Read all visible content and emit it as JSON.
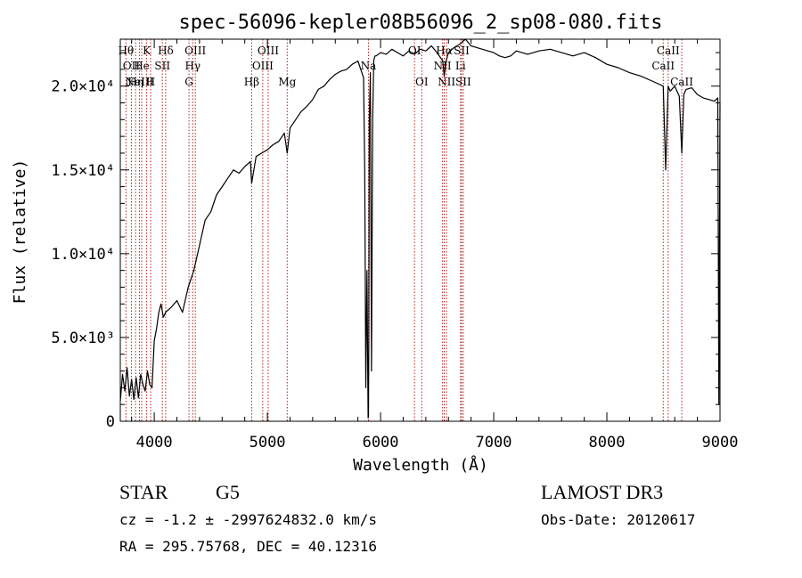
{
  "chart_data": {
    "type": "line",
    "title": "spec-56096-kepler08B56096_2_sp08-080.fits",
    "xlabel": "Wavelength (Å)",
    "ylabel": "Flux (relative)",
    "xlim": [
      3700,
      9000
    ],
    "ylim": [
      0,
      22800
    ],
    "x_ticks": [
      {
        "value": 4000,
        "label": "4000"
      },
      {
        "value": 5000,
        "label": "5000"
      },
      {
        "value": 6000,
        "label": "6000"
      },
      {
        "value": 7000,
        "label": "7000"
      },
      {
        "value": 8000,
        "label": "8000"
      },
      {
        "value": 9000,
        "label": "9000"
      }
    ],
    "y_ticks": [
      {
        "value": 0,
        "label": "0"
      },
      {
        "value": 5000,
        "label": "5.0×10³"
      },
      {
        "value": 10000,
        "label": "1.0×10⁴"
      },
      {
        "value": 15000,
        "label": "1.5×10⁴"
      },
      {
        "value": 20000,
        "label": "2.0×10⁴"
      }
    ],
    "series": [
      {
        "name": "spectrum",
        "x": [
          3700,
          3720,
          3740,
          3760,
          3780,
          3800,
          3820,
          3840,
          3860,
          3880,
          3900,
          3920,
          3940,
          3960,
          3980,
          4000,
          4020,
          4040,
          4060,
          4080,
          4100,
          4150,
          4200,
          4250,
          4300,
          4350,
          4400,
          4450,
          4500,
          4550,
          4600,
          4650,
          4700,
          4750,
          4800,
          4850,
          4861,
          4900,
          4950,
          5000,
          5050,
          5100,
          5150,
          5175,
          5200,
          5250,
          5300,
          5350,
          5400,
          5450,
          5500,
          5550,
          5600,
          5650,
          5700,
          5750,
          5800,
          5850,
          5860,
          5870,
          5880,
          5890,
          5893,
          5896,
          5900,
          5910,
          5920,
          5930,
          5940,
          5950,
          5960,
          6000,
          6050,
          6100,
          6150,
          6200,
          6250,
          6300,
          6350,
          6400,
          6450,
          6500,
          6550,
          6563,
          6580,
          6600,
          6650,
          6700,
          6750,
          6800,
          6850,
          6900,
          6950,
          7000,
          7050,
          7100,
          7150,
          7200,
          7300,
          7400,
          7500,
          7600,
          7700,
          7800,
          7900,
          8000,
          8100,
          8200,
          8300,
          8400,
          8498,
          8520,
          8542,
          8560,
          8600,
          8640,
          8662,
          8680,
          8700,
          8750,
          8800,
          8850,
          8900,
          8950,
          8980,
          8990,
          9000
        ],
        "y": [
          1200,
          2800,
          1800,
          3200,
          1500,
          2500,
          1300,
          2600,
          1400,
          2800,
          2200,
          1800,
          3000,
          2200,
          2000,
          4800,
          5500,
          6500,
          7000,
          6200,
          6500,
          6800,
          7200,
          6500,
          8000,
          9000,
          10500,
          12000,
          12500,
          13500,
          14000,
          14500,
          15000,
          14800,
          15200,
          15500,
          14200,
          15800,
          16000,
          16200,
          16500,
          16700,
          17200,
          16000,
          17500,
          18000,
          18500,
          18800,
          19200,
          19800,
          20000,
          20400,
          20700,
          20900,
          21000,
          21300,
          21500,
          20500,
          15000,
          2000,
          9000,
          200,
          300,
          5000,
          18000,
          20800,
          3000,
          18000,
          21500,
          21800,
          21800,
          22000,
          21900,
          22200,
          22000,
          21800,
          22100,
          21900,
          22200,
          22100,
          22400,
          22000,
          21500,
          20600,
          21500,
          22000,
          22300,
          22500,
          22800,
          22400,
          22300,
          22200,
          22100,
          22000,
          21800,
          21700,
          21800,
          22100,
          21900,
          22100,
          22200,
          22000,
          21800,
          22000,
          21700,
          21300,
          21100,
          20800,
          20600,
          20300,
          20000,
          15000,
          20000,
          19700,
          20000,
          19400,
          16000,
          19500,
          19800,
          19900,
          19500,
          19300,
          19200,
          19100,
          19300,
          1000,
          19000
        ]
      }
    ],
    "line_markers": [
      {
        "wavelength": 3750,
        "label": "Hθ",
        "row": 1
      },
      {
        "wavelength": 3798,
        "label": "OII",
        "row": 2
      },
      {
        "wavelength": 3835,
        "label": "Hη",
        "row": 3
      },
      {
        "wavelength": 3869,
        "label": "NeIII",
        "row": 3
      },
      {
        "wavelength": 3889,
        "label": "He",
        "row": 2
      },
      {
        "wavelength": 3933,
        "label": "K",
        "row": 1
      },
      {
        "wavelength": 3968,
        "label": "H",
        "row": 3
      },
      {
        "wavelength": 4072,
        "label": "SII",
        "row": 2
      },
      {
        "wavelength": 4101,
        "label": "Hδ",
        "row": 1
      },
      {
        "wavelength": 4307,
        "label": "G",
        "row": 3
      },
      {
        "wavelength": 4340,
        "label": "Hγ",
        "row": 2
      },
      {
        "wavelength": 4363,
        "label": "OIII",
        "row": 1
      },
      {
        "wavelength": 4861,
        "label": "Hβ",
        "row": 3
      },
      {
        "wavelength": 4959,
        "label": "OIII",
        "row": 2
      },
      {
        "wavelength": 5007,
        "label": "OIII",
        "row": 1
      },
      {
        "wavelength": 5175,
        "label": "Mg",
        "row": 3
      },
      {
        "wavelength": 5893,
        "label": "Na",
        "row": 2
      },
      {
        "wavelength": 6300,
        "label": "OI",
        "row": 1
      },
      {
        "wavelength": 6364,
        "label": "OI",
        "row": 3
      },
      {
        "wavelength": 6548,
        "label": "NII",
        "row": 2
      },
      {
        "wavelength": 6563,
        "label": "Hα",
        "row": 1
      },
      {
        "wavelength": 6583,
        "label": "NII",
        "row": 3
      },
      {
        "wavelength": 6707,
        "label": "Li",
        "row": 2
      },
      {
        "wavelength": 6716,
        "label": "SII",
        "row": 1
      },
      {
        "wavelength": 6731,
        "label": "SII",
        "row": 3
      },
      {
        "wavelength": 8498,
        "label": "CaII",
        "row": 2
      },
      {
        "wavelength": 8542,
        "label": "CaII",
        "row": 1
      },
      {
        "wavelength": 8662,
        "label": "CaII",
        "row": 3
      }
    ],
    "marker_color": "#b22222",
    "line_color": "#000000"
  },
  "info": {
    "object_class": "STAR",
    "subclass": "G5",
    "survey": "LAMOST DR3",
    "redshift": "cz = -1.2 ± -2997624832.0 km/s",
    "obs_date": "Obs-Date: 20120617",
    "coords": "RA = 295.75768, DEC =  40.12316"
  }
}
